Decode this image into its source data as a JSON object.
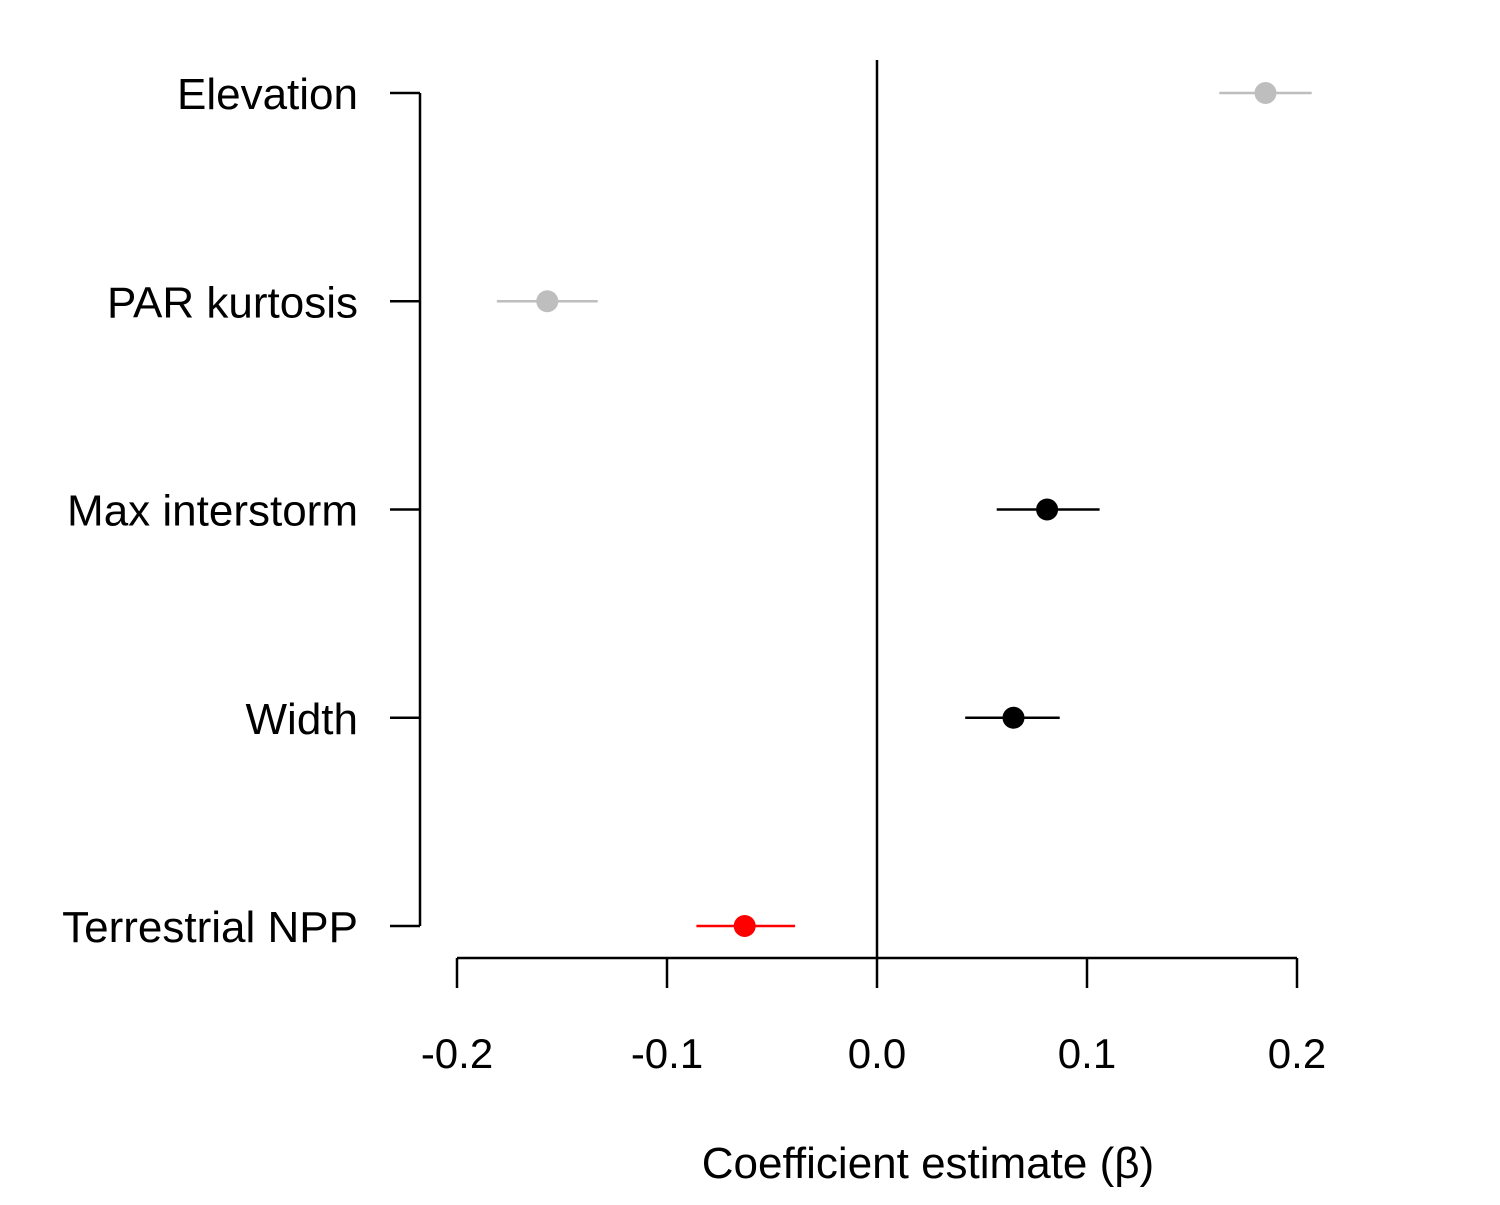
{
  "chart_data": {
    "type": "scatter",
    "subtype": "coefficient-plot",
    "title": "",
    "xlabel": "Coefficient estimate (β)",
    "ylabel": "",
    "xlim": [
      -0.2,
      0.2
    ],
    "x_ticks": [
      -0.2,
      -0.1,
      0.0,
      0.1,
      0.2
    ],
    "x_tick_labels": [
      "-0.2",
      "-0.1",
      "0.0",
      "0.1",
      "0.2"
    ],
    "reference_line_x": 0.0,
    "grid": false,
    "legend": "none",
    "colors": {
      "nonsignificant": "#bebebe",
      "positive": "#000000",
      "negative": "#ff0000"
    },
    "points": [
      {
        "label": "Elevation",
        "estimate": 0.185,
        "lower": 0.163,
        "upper": 0.207,
        "color": "#bebebe"
      },
      {
        "label": "PAR kurtosis",
        "estimate": -0.157,
        "lower": -0.181,
        "upper": -0.133,
        "color": "#bebebe"
      },
      {
        "label": "Max interstorm",
        "estimate": 0.081,
        "lower": 0.057,
        "upper": 0.106,
        "color": "#000000"
      },
      {
        "label": "Width",
        "estimate": 0.065,
        "lower": 0.042,
        "upper": 0.087,
        "color": "#000000"
      },
      {
        "label": "Terrestrial NPP",
        "estimate": -0.063,
        "lower": -0.086,
        "upper": -0.039,
        "color": "#ff0000"
      }
    ]
  }
}
